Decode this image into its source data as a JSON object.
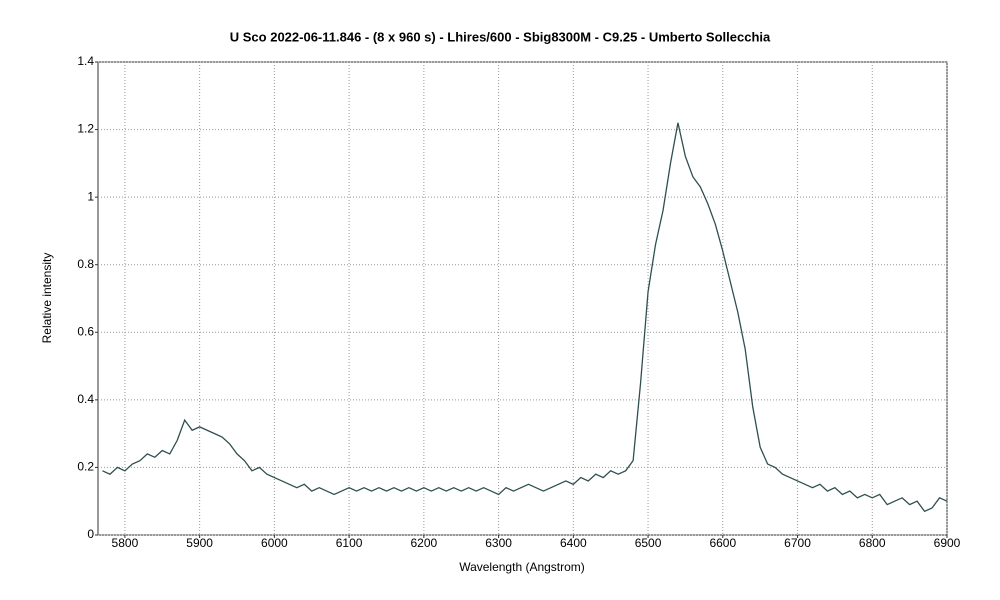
{
  "chart_data": {
    "type": "line",
    "title": "U Sco   2022-06-11.846 - (8 x 960 s) - Lhires/600 - Sbig8300M - C9.25 - Umberto Sollecchia",
    "x_label": "Wavelength (Angstrom)",
    "y_label": "Relative intensity",
    "xlim": [
      5764,
      6900
    ],
    "ylim": [
      0,
      1.4
    ],
    "xticks": [
      5800,
      5900,
      6000,
      6100,
      6200,
      6300,
      6400,
      6500,
      6600,
      6700,
      6800,
      6900
    ],
    "yticks": [
      0,
      0.2,
      0.4,
      0.6,
      0.8,
      1,
      1.2,
      1.4
    ],
    "grid": true,
    "x": [
      5770,
      5780,
      5790,
      5800,
      5810,
      5820,
      5830,
      5840,
      5850,
      5860,
      5870,
      5880,
      5890,
      5900,
      5910,
      5920,
      5930,
      5940,
      5950,
      5960,
      5970,
      5980,
      5990,
      6000,
      6010,
      6020,
      6030,
      6040,
      6050,
      6060,
      6070,
      6080,
      6090,
      6100,
      6110,
      6120,
      6130,
      6140,
      6150,
      6160,
      6170,
      6180,
      6190,
      6200,
      6210,
      6220,
      6230,
      6240,
      6250,
      6260,
      6270,
      6280,
      6290,
      6300,
      6310,
      6320,
      6330,
      6340,
      6350,
      6360,
      6370,
      6380,
      6390,
      6400,
      6410,
      6420,
      6430,
      6440,
      6450,
      6460,
      6470,
      6480,
      6490,
      6500,
      6510,
      6520,
      6530,
      6540,
      6550,
      6560,
      6570,
      6580,
      6590,
      6600,
      6610,
      6620,
      6630,
      6640,
      6650,
      6660,
      6670,
      6680,
      6690,
      6700,
      6710,
      6720,
      6730,
      6740,
      6750,
      6760,
      6770,
      6780,
      6790,
      6800,
      6810,
      6820,
      6830,
      6840,
      6850,
      6860,
      6870,
      6880,
      6890,
      6900
    ],
    "series": [
      {
        "color": "#2f4f4f",
        "values": [
          0.19,
          0.18,
          0.2,
          0.19,
          0.21,
          0.22,
          0.24,
          0.23,
          0.25,
          0.24,
          0.28,
          0.34,
          0.31,
          0.32,
          0.31,
          0.3,
          0.29,
          0.27,
          0.24,
          0.22,
          0.19,
          0.2,
          0.18,
          0.17,
          0.16,
          0.15,
          0.14,
          0.15,
          0.13,
          0.14,
          0.13,
          0.12,
          0.13,
          0.14,
          0.13,
          0.14,
          0.13,
          0.14,
          0.13,
          0.14,
          0.13,
          0.14,
          0.13,
          0.14,
          0.13,
          0.14,
          0.13,
          0.14,
          0.13,
          0.14,
          0.13,
          0.14,
          0.13,
          0.12,
          0.14,
          0.13,
          0.14,
          0.15,
          0.14,
          0.13,
          0.14,
          0.15,
          0.16,
          0.15,
          0.17,
          0.16,
          0.18,
          0.17,
          0.19,
          0.18,
          0.19,
          0.22,
          0.45,
          0.72,
          0.86,
          0.96,
          1.1,
          1.22,
          1.12,
          1.06,
          1.03,
          0.98,
          0.92,
          0.84,
          0.75,
          0.66,
          0.55,
          0.38,
          0.26,
          0.21,
          0.2,
          0.18,
          0.17,
          0.16,
          0.15,
          0.14,
          0.15,
          0.13,
          0.14,
          0.12,
          0.13,
          0.11,
          0.12,
          0.11,
          0.12,
          0.09,
          0.1,
          0.11,
          0.09,
          0.1,
          0.07,
          0.08,
          0.11,
          0.1
        ]
      }
    ]
  }
}
